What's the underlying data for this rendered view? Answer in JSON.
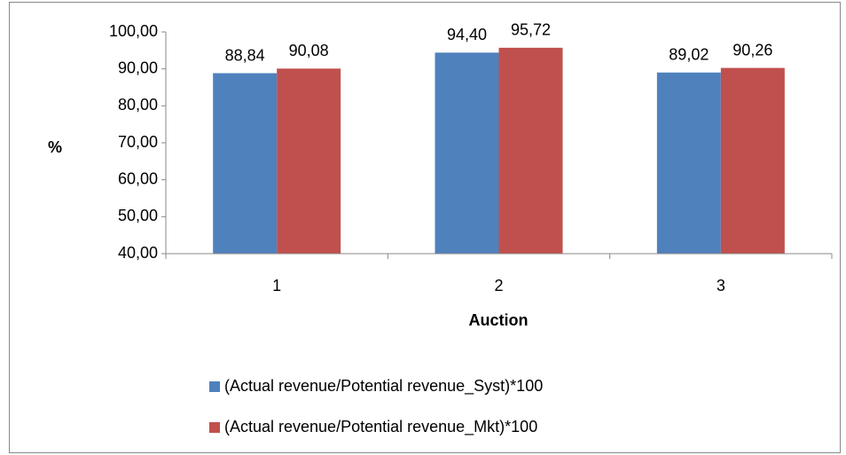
{
  "chart_data": {
    "type": "bar",
    "categories": [
      "1",
      "2",
      "3"
    ],
    "x_label": "Auction",
    "y_label": "%",
    "series": [
      {
        "name": "(Actual revenue/Potential revenue_Syst)*100",
        "color": "#4f81bd",
        "values": [
          88.84,
          94.4,
          89.02
        ],
        "value_labels": [
          "88,84",
          "94,40",
          "89,02"
        ]
      },
      {
        "name": "(Actual revenue/Potential revenue_Mkt)*100",
        "color": "#c0504d",
        "values": [
          90.08,
          95.72,
          90.26
        ],
        "value_labels": [
          "90,08",
          "95,72",
          "90,26"
        ]
      }
    ],
    "ylim": [
      40,
      100
    ],
    "yticks": [
      {
        "value": 40,
        "label": "40,00"
      },
      {
        "value": 50,
        "label": "50,00"
      },
      {
        "value": 60,
        "label": "60,00"
      },
      {
        "value": 70,
        "label": "70,00"
      },
      {
        "value": 80,
        "label": "80,00"
      },
      {
        "value": 90,
        "label": "90,00"
      },
      {
        "value": 100,
        "label": "100,00"
      }
    ],
    "grid": false,
    "legend": "bottom"
  }
}
